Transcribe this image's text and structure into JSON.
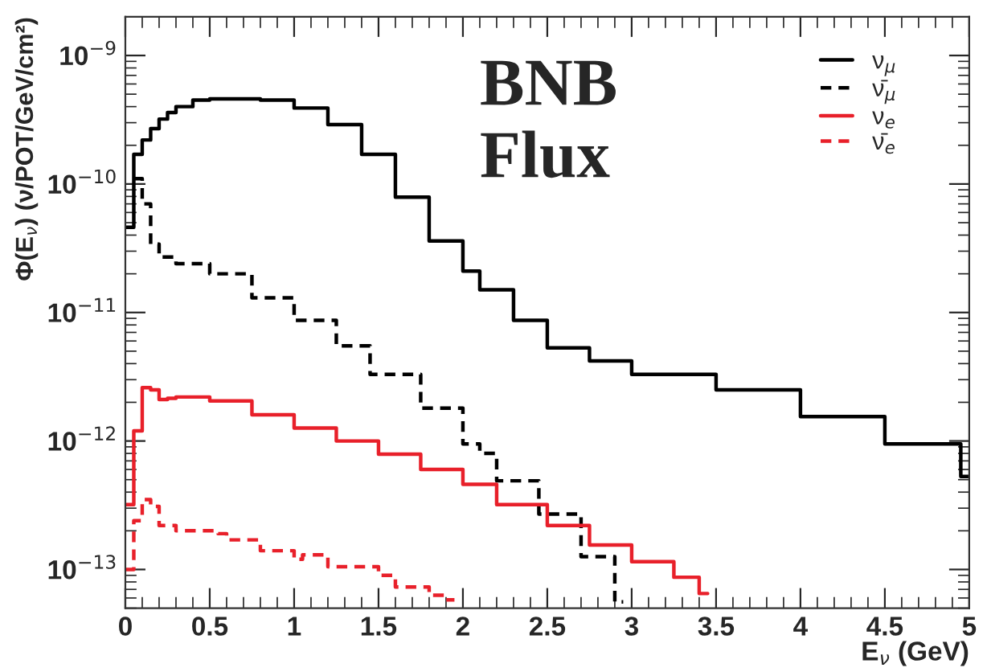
{
  "chart_data": {
    "type": "step",
    "xlabel": "E$_{ν}$ (GeV)",
    "ylabel": "Φ(E$_{ν}$) (ν/POT/GeV/cm²)",
    "annotations": [
      "BNB\nFlux"
    ],
    "log": "y",
    "grid": false,
    "legend": "top right",
    "xlim": [
      0,
      5
    ],
    "xticks": [
      0,
      0.5,
      1,
      1.5,
      2,
      2.5,
      3,
      3.5,
      4,
      4.5,
      5
    ],
    "ylim": [
      5e-14,
      2e-09
    ],
    "yticks": [
      {
        "value": 1e-13,
        "label": "10$^{−13}$"
      },
      {
        "value": 1e-12,
        "label": "10$^{−12}$"
      },
      {
        "value": 1e-11,
        "label": "10$^{−11}$"
      },
      {
        "value": 1e-10,
        "label": "10$^{−10}$"
      },
      {
        "value": 1e-09,
        "label": "10$^{−9}$"
      }
    ],
    "series": [
      {
        "name": "ν$_{μ}$",
        "color": "#000000",
        "line_style": "solid",
        "x": [
          0,
          0.05,
          0.1,
          0.15,
          0.2,
          0.25,
          0.3,
          0.4,
          0.5,
          0.7,
          0.8,
          1.0,
          1.2,
          1.4,
          1.6,
          1.8,
          2.0,
          2.1,
          2.3,
          2.5,
          2.75,
          3.0,
          3.5,
          4.0,
          4.5,
          4.95,
          5.0
        ],
        "values": [
          4.6e-11,
          1.7e-10,
          2.2e-10,
          2.7e-10,
          3.2e-10,
          3.6e-10,
          4e-10,
          4.5e-10,
          4.6e-10,
          4.6e-10,
          4.5e-10,
          3.9e-10,
          2.9e-10,
          1.7e-10,
          7.9e-11,
          3.6e-11,
          2.1e-11,
          1.5e-11,
          8.7e-12,
          5.3e-12,
          4.2e-12,
          3.3e-12,
          2.5e-12,
          1.55e-12,
          9.5e-13,
          5.3e-13,
          5.3e-13
        ]
      },
      {
        "name": "ν̄$_{μ}$",
        "color": "#000000",
        "line_style": "dashed",
        "x": [
          0.05,
          0.1,
          0.15,
          0.2,
          0.3,
          0.5,
          0.75,
          1.0,
          1.25,
          1.45,
          1.75,
          2.0,
          2.1,
          2.2,
          2.45,
          2.7,
          2.9,
          2.95
        ],
        "values": [
          1.1e-10,
          7e-11,
          3.4e-11,
          2.7e-11,
          2.4e-11,
          2e-11,
          1.3e-11,
          8.7e-12,
          5.5e-12,
          3.3e-12,
          1.8e-12,
          9.5e-13,
          8e-13,
          4.9e-13,
          2.7e-13,
          1.26e-13,
          5.6e-14,
          5.6e-14
        ]
      },
      {
        "name": "ν$_{e}$",
        "color": "#e8202a",
        "line_style": "solid",
        "x": [
          0,
          0.05,
          0.1,
          0.15,
          0.2,
          0.25,
          0.3,
          0.4,
          0.5,
          0.75,
          1.0,
          1.25,
          1.5,
          1.75,
          2.0,
          2.2,
          2.5,
          2.75,
          3.0,
          3.25,
          3.4,
          3.45
        ],
        "values": [
          3.2e-13,
          1.2e-12,
          2.6e-12,
          2.5e-12,
          2.1e-12,
          2.15e-12,
          2.2e-12,
          2.2e-12,
          2.05e-12,
          1.6e-12,
          1.26e-12,
          1e-12,
          7.9e-13,
          6e-13,
          4.6e-13,
          3.2e-13,
          2.2e-13,
          1.55e-13,
          1.15e-13,
          8.7e-14,
          6.5e-14,
          6.5e-14
        ]
      },
      {
        "name": "ν̄$_{e}$",
        "color": "#e8202a",
        "line_style": "dashed",
        "x": [
          0,
          0.05,
          0.1,
          0.15,
          0.2,
          0.3,
          0.55,
          0.6,
          0.8,
          1.0,
          1.05,
          1.2,
          1.5,
          1.6,
          1.8,
          1.9,
          1.95
        ],
        "values": [
          1e-13,
          2.4e-13,
          3.5e-13,
          3.1e-13,
          2.2e-13,
          2e-13,
          1.9e-13,
          1.7e-13,
          1.4e-13,
          1.2e-13,
          1.3e-13,
          1.05e-13,
          9e-14,
          7.3e-14,
          6.3e-14,
          5.8e-14,
          5.8e-14
        ]
      }
    ]
  }
}
